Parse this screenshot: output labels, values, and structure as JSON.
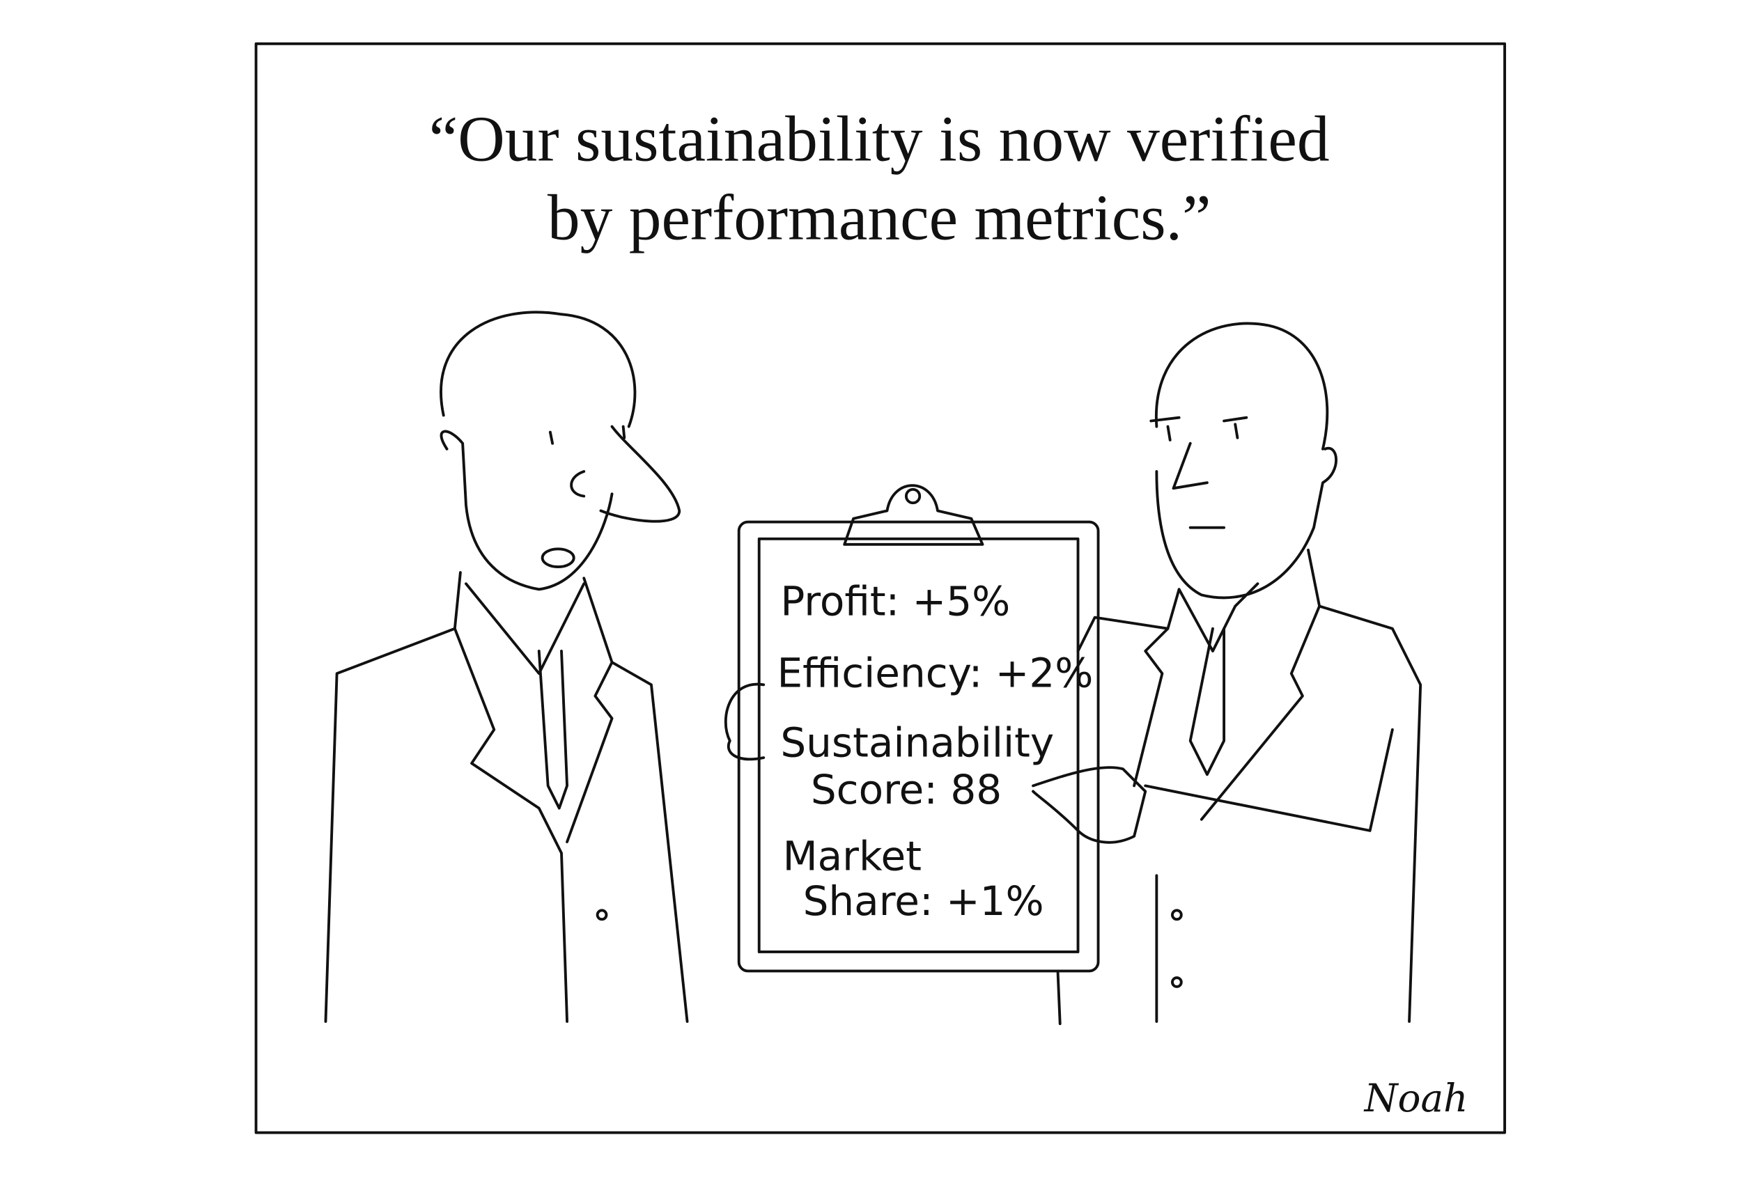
{
  "caption": {
    "lines": [
      "“Our sustainability is now verified",
      "by performance metrics.”"
    ]
  },
  "clipboard": {
    "lines": [
      "Profit: +5%",
      "Efficiency: +2%",
      "Sustainability",
      "Score: 88",
      "Market",
      "Share: +1%"
    ]
  },
  "signature": "Noah"
}
